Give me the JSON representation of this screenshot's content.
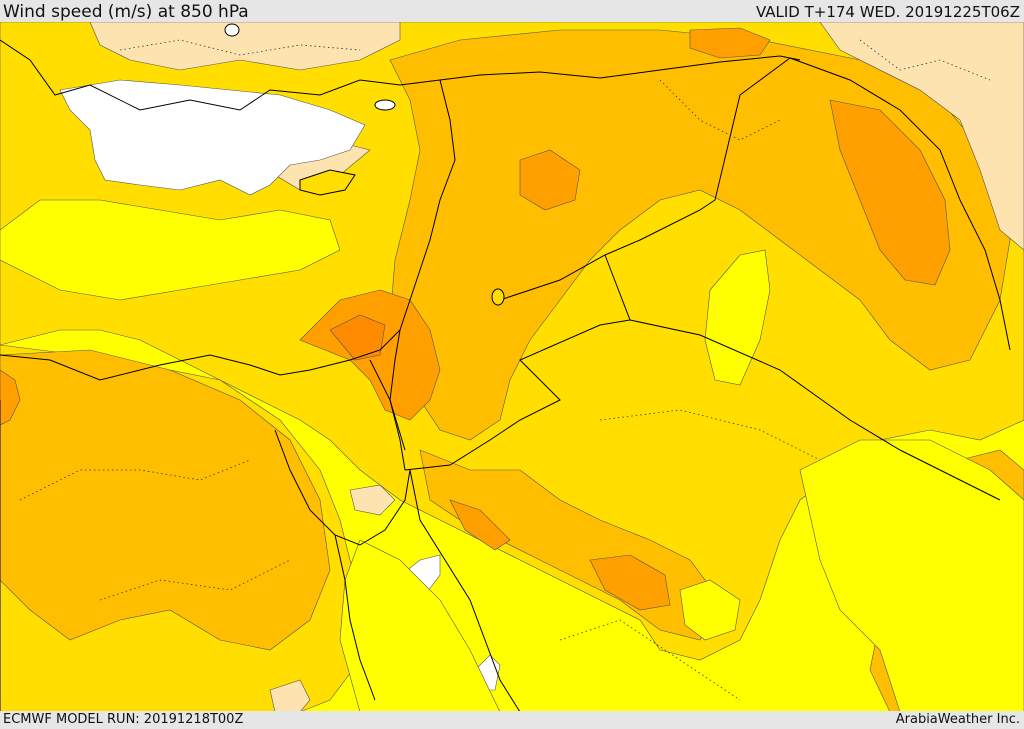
{
  "header": {
    "title": "Wind speed (m/s) at 850 hPa",
    "valid": "VALID T+174 WED. 20191225T06Z"
  },
  "footer": {
    "model_run": "ECMWF MODEL RUN: 20191218T00Z",
    "credit": "ArabiaWeather Inc."
  },
  "map": {
    "variable": "wind speed",
    "level": "850 hPa",
    "palette": {
      "band_lowest": "#ffffff",
      "band_low": "#fde3b0",
      "band_1": "#ffff00",
      "band_2": "#ffde00",
      "band_3": "#ffbf00",
      "band_4": "#ff9f00",
      "band_5": "#ff8c00"
    },
    "line_colors": {
      "country_border": "#000000",
      "contour": "#555555",
      "province_border": "#333333"
    }
  }
}
